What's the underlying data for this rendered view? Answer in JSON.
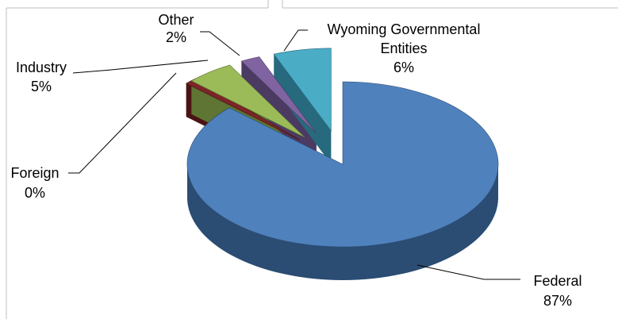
{
  "chart_data": {
    "type": "pie",
    "style": "3d-exploded",
    "title": "",
    "legend": "none",
    "slices": [
      {
        "name": "Federal",
        "value": 87,
        "label": "87%",
        "color": "#4f81bd",
        "side": "#2b4c73",
        "exploded": false
      },
      {
        "name": "Foreign",
        "value": 0,
        "label": "0%",
        "color": "#7a2626",
        "side": "#4a1414",
        "exploded": true
      },
      {
        "name": "Industry",
        "value": 5,
        "label": "5%",
        "color": "#9bbb59",
        "side": "#5e7534",
        "exploded": true
      },
      {
        "name": "Other",
        "value": 2,
        "label": "2%",
        "color": "#8064a2",
        "side": "#4b3a62",
        "exploded": true
      },
      {
        "name": "Wyoming Governmental Entities",
        "value": 6,
        "label": "6%",
        "color": "#4bacc6",
        "side": "#276a7d",
        "exploded": true
      }
    ],
    "labels": {
      "federal": [
        "Federal",
        "87%"
      ],
      "foreign": [
        "Foreign",
        "0%"
      ],
      "industry": [
        "Industry",
        "5%"
      ],
      "other": [
        "Other",
        "2%"
      ],
      "wyoming": [
        "Wyoming Governmental",
        "Entities",
        "6%"
      ]
    }
  }
}
